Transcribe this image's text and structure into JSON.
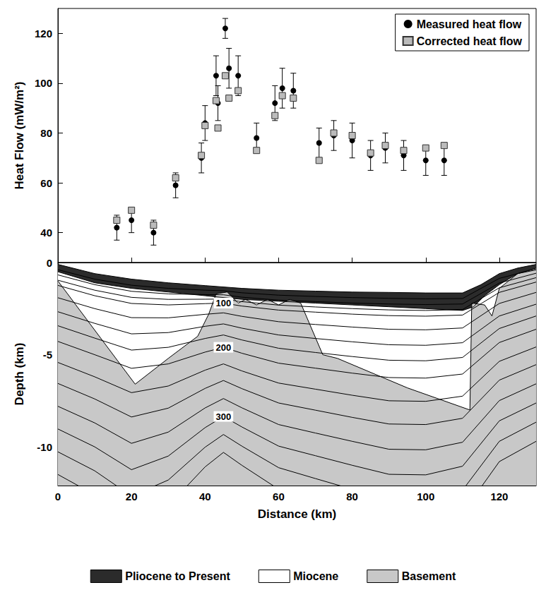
{
  "chart_data": [
    {
      "type": "scatter",
      "y_label": "Heat Flow (mW/m²)",
      "xlim": [
        0,
        130
      ],
      "xticks": [
        0,
        20,
        40,
        60,
        80,
        100,
        120
      ],
      "ylim": [
        28,
        130
      ],
      "yticks": [
        40,
        60,
        80,
        100,
        120
      ],
      "tick_labels": "y",
      "grid": false,
      "legend": "upper right",
      "series": [
        {
          "name": "Measured heat flow",
          "color": "#000000",
          "marker": "circle",
          "x": [
            16,
            20,
            26,
            32,
            39,
            40,
            43,
            43.5,
            45.5,
            46.5,
            49,
            54,
            59,
            61,
            64,
            71,
            75,
            80,
            85,
            89,
            94,
            100,
            105
          ],
          "values": [
            42,
            45,
            40,
            59,
            70,
            84,
            103,
            92,
            122,
            106,
            103,
            78,
            92,
            98,
            97,
            76,
            79,
            77,
            71,
            74,
            71,
            69,
            69
          ],
          "errors": [
            5,
            5,
            5,
            5,
            6,
            7,
            8,
            7,
            4,
            8,
            8,
            6,
            7,
            8,
            7,
            6,
            6,
            7,
            6,
            6,
            6,
            6,
            6
          ]
        },
        {
          "name": "Corrected heat flow",
          "color": "#bbbbbb",
          "marker": "square",
          "x": [
            16,
            20,
            26,
            32,
            39,
            40,
            43,
            43.5,
            45.5,
            46.5,
            49,
            54,
            59,
            61,
            64,
            71,
            75,
            80,
            85,
            89,
            94,
            100,
            105
          ],
          "values": [
            45,
            49,
            43,
            62,
            71,
            83,
            93,
            82,
            103,
            94,
            97,
            73,
            87,
            95,
            94,
            69,
            80,
            79,
            72,
            75,
            73,
            74,
            75
          ]
        }
      ]
    },
    {
      "type": "area",
      "x_label": "Distance (km)",
      "y_label": "Depth (km)",
      "xlim": [
        0,
        130
      ],
      "xticks": [
        0,
        20,
        40,
        60,
        80,
        100,
        120
      ],
      "ylim": [
        -12.1,
        0
      ],
      "yticks": [
        -10,
        -5,
        0
      ],
      "grid": false,
      "legend": "bottom",
      "series": [
        {
          "name": "Pliocene to Present",
          "type": "area",
          "color": "#2b2b2b",
          "x": [
            0,
            10,
            20,
            30,
            40,
            50,
            60,
            70,
            80,
            90,
            100,
            110,
            115,
            120,
            125,
            130
          ],
          "values": [
            -0.1,
            -0.6,
            -0.9,
            -1.1,
            -1.25,
            -1.4,
            -1.5,
            -1.55,
            -1.6,
            -1.62,
            -1.65,
            -1.65,
            -1.2,
            -0.6,
            -0.3,
            -0.1
          ]
        },
        {
          "name": "Miocene",
          "type": "area",
          "color": "#ffffff",
          "x": [
            0,
            10,
            20,
            30,
            40,
            50,
            60,
            70,
            80,
            90,
            100,
            110,
            113,
            116,
            120,
            125,
            130
          ],
          "values": [
            -0.5,
            -1.1,
            -1.4,
            -1.6,
            -1.8,
            -2.0,
            -2.1,
            -2.2,
            -2.3,
            -2.4,
            -2.5,
            -2.6,
            -2.4,
            -1.8,
            -1.2,
            -0.6,
            -0.3
          ]
        },
        {
          "name": "Basement",
          "type": "area",
          "color": "#c8c8c8",
          "x": [
            0,
            21,
            30,
            38,
            41,
            43,
            46,
            49,
            51,
            54,
            57,
            60,
            63,
            66,
            72,
            76,
            95,
            112,
            112.5,
            116,
            118,
            120,
            125,
            130
          ],
          "values": [
            -1.0,
            -6.6,
            -5.2,
            -4.0,
            -2.8,
            -1.7,
            -1.6,
            -2.2,
            -2.0,
            -2.3,
            -2.0,
            -2.3,
            -2.0,
            -2.2,
            -5.0,
            -5.2,
            -6.8,
            -8.0,
            -2.2,
            -2.3,
            -2.9,
            -1.4,
            -0.6,
            -0.4
          ]
        }
      ],
      "contours": {
        "type": "line",
        "color": "#000000",
        "x": [
          0,
          10,
          20,
          30,
          40,
          45,
          50,
          60,
          70,
          80,
          90,
          100,
          110,
          120,
          130
        ],
        "levels": [
          25,
          50,
          75,
          100,
          125,
          150,
          175,
          200,
          225,
          250,
          275,
          300,
          325,
          350
        ],
        "depths": [
          [
            -0.39,
            -0.9,
            -1.23,
            -1.4,
            -1.5,
            -1.53,
            -1.64,
            -1.77,
            -1.84,
            -1.9,
            -1.94,
            -1.97,
            -1.95,
            -0.86,
            -0.34
          ],
          [
            -0.67,
            -1.2,
            -1.56,
            -1.7,
            -1.74,
            -1.75,
            -1.88,
            -2.04,
            -2.12,
            -2.2,
            -2.25,
            -2.28,
            -2.25,
            -1.11,
            -0.58
          ],
          [
            -0.96,
            -1.5,
            -1.89,
            -2.0,
            -1.99,
            -1.98,
            -2.12,
            -2.31,
            -2.41,
            -2.5,
            -2.57,
            -2.6,
            -2.55,
            -1.37,
            -0.82
          ],
          [
            -1.24,
            -1.8,
            -2.22,
            -2.3,
            -2.23,
            -2.2,
            -2.36,
            -2.58,
            -2.69,
            -2.8,
            -2.88,
            -2.91,
            -2.85,
            -1.62,
            -1.06
          ],
          [
            -1.91,
            -2.5,
            -2.99,
            -3.0,
            -2.81,
            -2.73,
            -2.92,
            -3.21,
            -3.36,
            -3.5,
            -3.62,
            -3.65,
            -3.55,
            -2.22,
            -1.62
          ],
          [
            -2.67,
            -3.3,
            -3.87,
            -3.8,
            -3.46,
            -3.33,
            -3.56,
            -3.93,
            -4.12,
            -4.3,
            -4.46,
            -4.49,
            -4.35,
            -2.9,
            -2.26
          ],
          [
            -3.43,
            -4.1,
            -4.75,
            -4.6,
            -4.12,
            -3.93,
            -4.2,
            -4.65,
            -4.88,
            -5.1,
            -5.3,
            -5.33,
            -5.15,
            -3.58,
            -2.9
          ],
          [
            -4.28,
            -5.0,
            -5.74,
            -5.5,
            -4.86,
            -4.6,
            -4.92,
            -5.46,
            -5.73,
            -6.0,
            -6.24,
            -6.27,
            -6.05,
            -4.34,
            -3.62
          ],
          [
            -5.42,
            -6.2,
            -7.06,
            -6.7,
            -5.84,
            -5.5,
            -5.88,
            -6.54,
            -6.87,
            -7.2,
            -7.5,
            -7.53,
            -7.25,
            -5.36,
            -4.58
          ],
          [
            -6.56,
            -7.4,
            -8.38,
            -7.9,
            -6.83,
            -6.4,
            -6.84,
            -7.62,
            -8.01,
            -8.4,
            -8.76,
            -8.79,
            -8.45,
            -6.38,
            -5.54
          ],
          [
            -7.8,
            -8.7,
            -9.81,
            -9.2,
            -7.89,
            -7.38,
            -7.88,
            -8.79,
            -9.25,
            -9.7,
            -10.13,
            -10.16,
            -9.75,
            -7.49,
            -6.58
          ],
          [
            -9.03,
            -10.0,
            -11.24,
            -10.5,
            -8.96,
            -8.35,
            -8.92,
            -9.96,
            -10.48,
            -11.0,
            -11.49,
            -11.52,
            -11.05,
            -8.59,
            -7.62
          ],
          [
            -10.27,
            -11.3,
            -12.67,
            -11.8,
            -10.02,
            -9.33,
            -9.96,
            -11.13,
            -11.72,
            -12.3,
            -12.86,
            -12.89,
            -12.35,
            -9.7,
            -8.66
          ],
          [
            -11.5,
            -12.6,
            -14.1,
            -13.2,
            -11.09,
            -10.3,
            -11.0,
            -12.3,
            -12.95,
            -13.6,
            -14.22,
            -14.25,
            -13.6,
            -10.8,
            -9.7
          ]
        ],
        "labeled_levels": [
          100,
          200,
          300
        ],
        "label_x": 45
      }
    }
  ]
}
